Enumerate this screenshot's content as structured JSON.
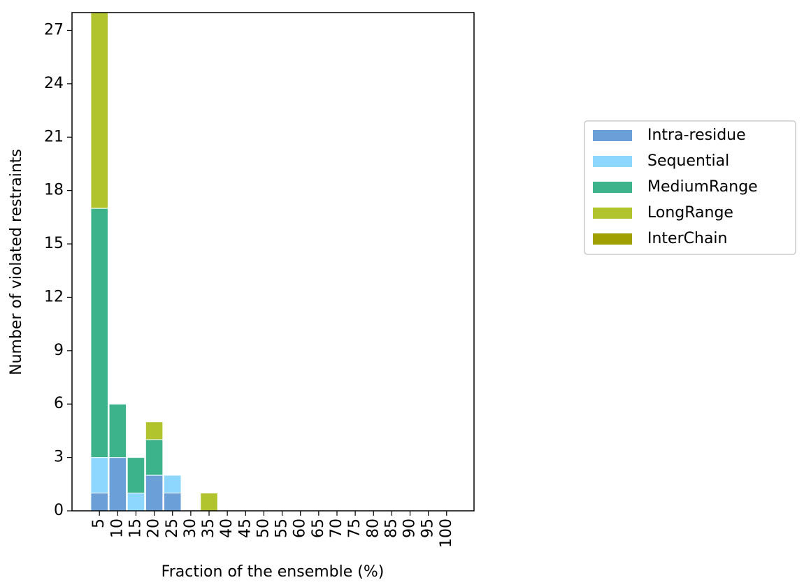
{
  "chart_data": {
    "type": "stacked_bar",
    "xlabel": "Fraction of the ensemble (%)",
    "ylabel": "Number of violated restraints",
    "categories": [
      "5",
      "10",
      "15",
      "20",
      "25",
      "30",
      "35",
      "40",
      "45",
      "50",
      "55",
      "60",
      "65",
      "70",
      "75",
      "80",
      "85",
      "90",
      "95",
      "100"
    ],
    "series": [
      {
        "name": "Intra-residue",
        "color": "#6a9fd8",
        "values": [
          1,
          3,
          0,
          2,
          1,
          0,
          0,
          0,
          0,
          0,
          0,
          0,
          0,
          0,
          0,
          0,
          0,
          0,
          0,
          0
        ]
      },
      {
        "name": "Sequential",
        "color": "#8dd7ff",
        "values": [
          2,
          0,
          1,
          0,
          1,
          0,
          0,
          0,
          0,
          0,
          0,
          0,
          0,
          0,
          0,
          0,
          0,
          0,
          0,
          0
        ]
      },
      {
        "name": "MediumRange",
        "color": "#3db38c",
        "values": [
          14,
          3,
          2,
          2,
          0,
          0,
          0,
          0,
          0,
          0,
          0,
          0,
          0,
          0,
          0,
          0,
          0,
          0,
          0,
          0
        ]
      },
      {
        "name": "LongRange",
        "color": "#b2c42d",
        "values": [
          11,
          0,
          0,
          1,
          0,
          0,
          1,
          0,
          0,
          0,
          0,
          0,
          0,
          0,
          0,
          0,
          0,
          0,
          0,
          0
        ]
      },
      {
        "name": "InterChain",
        "color": "#a0a000",
        "values": [
          0,
          0,
          0,
          0,
          0,
          0,
          0,
          0,
          0,
          0,
          0,
          0,
          0,
          0,
          0,
          0,
          0,
          0,
          0,
          0
        ]
      }
    ],
    "ylim": [
      0,
      28
    ],
    "yticks": [
      0,
      3,
      6,
      9,
      12,
      15,
      18,
      21,
      24,
      27
    ],
    "grid": false,
    "legend": "right"
  }
}
